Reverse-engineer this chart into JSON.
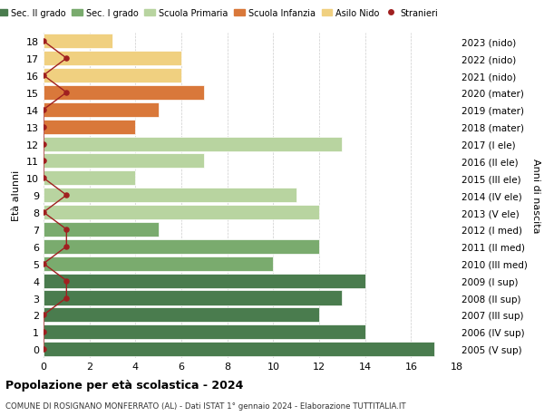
{
  "ages": [
    18,
    17,
    16,
    15,
    14,
    13,
    12,
    11,
    10,
    9,
    8,
    7,
    6,
    5,
    4,
    3,
    2,
    1,
    0
  ],
  "years": [
    "2005 (V sup)",
    "2006 (IV sup)",
    "2007 (III sup)",
    "2008 (II sup)",
    "2009 (I sup)",
    "2010 (III med)",
    "2011 (II med)",
    "2012 (I med)",
    "2013 (V ele)",
    "2014 (IV ele)",
    "2015 (III ele)",
    "2016 (II ele)",
    "2017 (I ele)",
    "2018 (mater)",
    "2019 (mater)",
    "2020 (mater)",
    "2021 (nido)",
    "2022 (nido)",
    "2023 (nido)"
  ],
  "values": [
    17,
    14,
    12,
    13,
    14,
    10,
    12,
    5,
    12,
    11,
    4,
    7,
    13,
    4,
    5,
    7,
    6,
    6,
    3
  ],
  "bar_colors": [
    "#4a7c4e",
    "#4a7c4e",
    "#4a7c4e",
    "#4a7c4e",
    "#4a7c4e",
    "#7aab6e",
    "#7aab6e",
    "#7aab6e",
    "#b8d4a0",
    "#b8d4a0",
    "#b8d4a0",
    "#b8d4a0",
    "#b8d4a0",
    "#d9783a",
    "#d9783a",
    "#d9783a",
    "#f0d080",
    "#f0d080",
    "#f0d080"
  ],
  "stranieri_x": [
    0,
    0,
    0,
    1,
    1,
    0,
    1,
    1,
    0,
    1,
    0,
    0,
    0,
    0,
    0,
    1,
    0,
    1,
    0
  ],
  "title": "Popolazione per età scolastica - 2024",
  "subtitle": "COMUNE DI ROSIGNANO MONFERRATO (AL) - Dati ISTAT 1° gennaio 2024 - Elaborazione TUTTITALIA.IT",
  "ylabel": "Età alunni",
  "ylabel2": "Anni di nascita",
  "xlim": [
    0,
    18
  ],
  "color_sec2": "#4a7c4e",
  "color_sec1": "#7aab6e",
  "color_prim": "#b8d4a0",
  "color_infanzia": "#d9783a",
  "color_nido": "#f0d080",
  "color_stranieri": "#a02020",
  "legend_labels": [
    "Sec. II grado",
    "Sec. I grado",
    "Scuola Primaria",
    "Scuola Infanzia",
    "Asilo Nido",
    "Stranieri"
  ],
  "bg_color": "#ffffff"
}
